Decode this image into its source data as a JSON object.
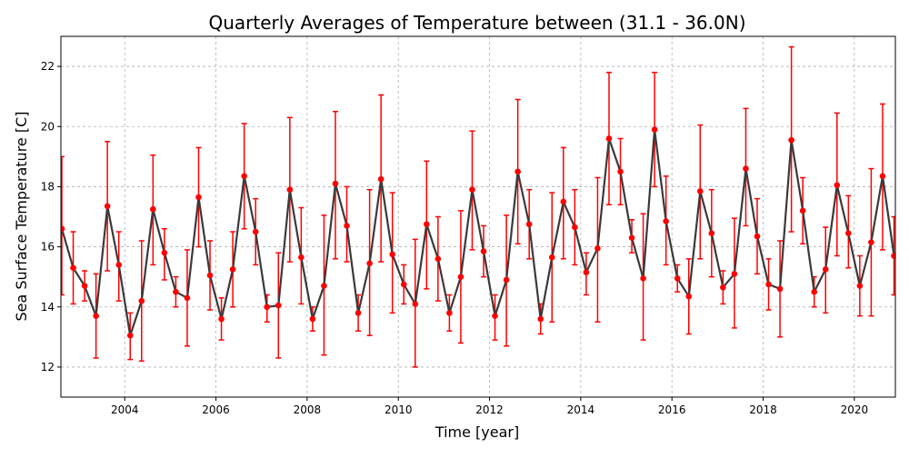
{
  "chart_data": {
    "type": "line",
    "title": "Quarterly Averages of Temperature between (31.1 - 36.0N)",
    "xlabel": "Time [year]",
    "ylabel": "Sea Surface Temperature [C]",
    "xlim": [
      2002.6,
      2020.9
    ],
    "ylim": [
      11.0,
      23.0
    ],
    "xticks": [
      2004,
      2006,
      2008,
      2010,
      2012,
      2014,
      2016,
      2018,
      2020
    ],
    "yticks": [
      12,
      14,
      16,
      18,
      20,
      22
    ],
    "grid": true,
    "colors": {
      "line": "#3a3a3a",
      "marker": "#ff0000",
      "errorbar": "#ff0000",
      "grid": "#b0b0b0"
    },
    "series": [
      {
        "x": [
          2002.62,
          2002.87,
          2003.12,
          2003.37,
          2003.62,
          2003.87,
          2004.12,
          2004.37,
          2004.62,
          2004.87,
          2005.12,
          2005.37,
          2005.62,
          2005.87,
          2006.12,
          2006.37,
          2006.62,
          2006.87,
          2007.12,
          2007.37,
          2007.62,
          2007.87,
          2008.12,
          2008.37,
          2008.62,
          2008.87,
          2009.12,
          2009.37,
          2009.62,
          2009.87,
          2010.12,
          2010.37,
          2010.62,
          2010.87,
          2011.12,
          2011.37,
          2011.62,
          2011.87,
          2012.12,
          2012.37,
          2012.62,
          2012.87,
          2013.12,
          2013.37,
          2013.62,
          2013.87,
          2014.12,
          2014.37,
          2014.62,
          2014.87,
          2015.12,
          2015.37,
          2015.62,
          2015.87,
          2016.12,
          2016.37,
          2016.62,
          2016.87,
          2017.12,
          2017.37,
          2017.62,
          2017.87,
          2018.12,
          2018.37,
          2018.62,
          2018.87,
          2019.12,
          2019.37,
          2019.62,
          2019.87,
          2020.12,
          2020.37,
          2020.62,
          2020.87
        ],
        "y": [
          16.6,
          15.3,
          14.7,
          13.7,
          17.35,
          15.4,
          13.05,
          14.2,
          17.25,
          15.8,
          14.5,
          14.3,
          17.65,
          15.05,
          13.6,
          15.25,
          18.35,
          16.5,
          14.0,
          14.05,
          17.9,
          15.65,
          13.6,
          14.7,
          18.1,
          16.7,
          13.8,
          15.45,
          18.25,
          15.75,
          14.75,
          14.1,
          16.75,
          15.6,
          13.8,
          15.0,
          17.9,
          15.85,
          13.7,
          14.9,
          18.5,
          16.75,
          13.6,
          15.65,
          17.5,
          16.65,
          15.15,
          15.95,
          19.6,
          18.5,
          16.3,
          14.95,
          19.9,
          16.85,
          14.95,
          14.35,
          17.85,
          16.45,
          14.65,
          15.1,
          18.6,
          16.35,
          14.75,
          14.6,
          19.55,
          17.2,
          14.5,
          15.25,
          18.05,
          16.45,
          14.7,
          16.15,
          18.35,
          15.7
        ],
        "err_low": [
          14.4,
          14.1,
          14.2,
          12.3,
          15.2,
          14.2,
          12.25,
          12.2,
          15.4,
          14.9,
          14.0,
          12.7,
          16.0,
          13.9,
          12.9,
          14.0,
          16.6,
          15.4,
          13.5,
          12.3,
          15.5,
          14.1,
          13.2,
          12.4,
          15.6,
          15.5,
          13.2,
          13.05,
          15.5,
          13.8,
          14.1,
          12.0,
          14.6,
          14.2,
          13.2,
          12.8,
          15.9,
          15.0,
          12.9,
          12.7,
          16.1,
          15.6,
          13.1,
          13.5,
          15.6,
          15.4,
          14.4,
          13.5,
          17.4,
          17.4,
          15.8,
          12.9,
          18.0,
          15.4,
          14.5,
          13.1,
          15.6,
          15.0,
          14.1,
          13.3,
          16.7,
          15.1,
          13.9,
          13.0,
          16.5,
          16.1,
          14.0,
          13.8,
          15.7,
          15.3,
          13.7,
          13.7,
          15.9,
          14.4
        ],
        "err_high": [
          19.0,
          16.5,
          15.2,
          15.1,
          19.5,
          16.5,
          13.8,
          16.2,
          19.05,
          16.6,
          15.0,
          15.9,
          19.3,
          16.2,
          14.3,
          16.5,
          20.1,
          17.6,
          14.4,
          15.8,
          20.3,
          17.3,
          14.0,
          17.05,
          20.5,
          18.0,
          14.4,
          17.9,
          21.05,
          17.8,
          15.4,
          16.25,
          18.85,
          17.0,
          14.4,
          17.2,
          19.85,
          16.7,
          14.4,
          17.05,
          20.9,
          17.9,
          14.1,
          17.8,
          19.3,
          17.9,
          15.8,
          18.3,
          21.8,
          19.6,
          16.9,
          17.1,
          21.8,
          18.35,
          15.4,
          15.6,
          20.05,
          17.9,
          15.2,
          16.95,
          20.6,
          17.6,
          15.6,
          16.2,
          22.65,
          18.3,
          15.0,
          16.65,
          20.45,
          17.7,
          15.7,
          18.6,
          20.75,
          17.0
        ]
      }
    ]
  }
}
